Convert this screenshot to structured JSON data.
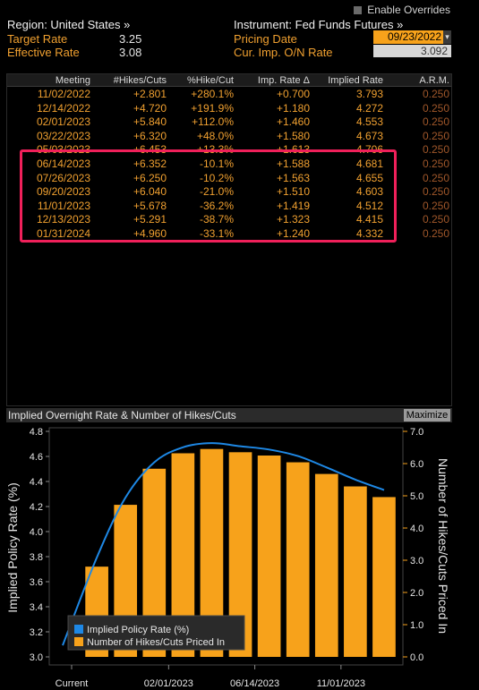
{
  "top_bar": {
    "enable_overrides": "Enable Overrides"
  },
  "header": {
    "region": "Region: United States »",
    "instrument": "Instrument: Fed Funds Futures »",
    "target_rate_label": "Target Rate",
    "target_rate_value": "3.25",
    "effective_rate_label": "Effective Rate",
    "effective_rate_value": "3.08",
    "pricing_date_label": "Pricing Date",
    "pricing_date_value": "09/23/2022",
    "cur_imp_label": "Cur. Imp. O/N Rate",
    "cur_imp_value": "3.092"
  },
  "table": {
    "columns": [
      "Meeting",
      "#Hikes/Cuts",
      "%Hike/Cut",
      "Imp. Rate Δ",
      "Implied Rate",
      "A.R.M."
    ],
    "rows": [
      [
        "11/02/2022",
        "+2.801",
        "+280.1%",
        "+0.700",
        "3.793",
        "0.250"
      ],
      [
        "12/14/2022",
        "+4.720",
        "+191.9%",
        "+1.180",
        "4.272",
        "0.250"
      ],
      [
        "02/01/2023",
        "+5.840",
        "+112.0%",
        "+1.460",
        "4.553",
        "0.250"
      ],
      [
        "03/22/2023",
        "+6.320",
        "+48.0%",
        "+1.580",
        "4.673",
        "0.250"
      ],
      [
        "05/03/2023",
        "+6.453",
        "+13.3%",
        "+1.613",
        "4.706",
        "0.250"
      ],
      [
        "06/14/2023",
        "+6.352",
        "-10.1%",
        "+1.588",
        "4.681",
        "0.250"
      ],
      [
        "07/26/2023",
        "+6.250",
        "-10.2%",
        "+1.563",
        "4.655",
        "0.250"
      ],
      [
        "09/20/2023",
        "+6.040",
        "-21.0%",
        "+1.510",
        "4.603",
        "0.250"
      ],
      [
        "11/01/2023",
        "+5.678",
        "-36.2%",
        "+1.419",
        "4.512",
        "0.250"
      ],
      [
        "12/13/2023",
        "+5.291",
        "-38.7%",
        "+1.323",
        "4.415",
        "0.250"
      ],
      [
        "01/31/2024",
        "+4.960",
        "-33.1%",
        "+1.240",
        "4.332",
        "0.250"
      ]
    ]
  },
  "chart_panel": {
    "title": "Implied Overnight Rate & Number of Hikes/Cuts",
    "maximize": "Maximize"
  },
  "colors": {
    "accent": "#f0a030",
    "line": "#1e88e5",
    "bar": "#f7a21b",
    "highlight": "#f0205a"
  },
  "chart_data": {
    "type": "bar",
    "x_tick_labels": [
      "Current",
      "02/01/2023",
      "06/14/2023",
      "11/01/2023"
    ],
    "categories": [
      "Current",
      "11/02/2022",
      "12/14/2022",
      "02/01/2023",
      "03/22/2023",
      "05/03/2023",
      "06/14/2023",
      "07/26/2023",
      "09/20/2023",
      "11/01/2023",
      "12/13/2023",
      "01/31/2024"
    ],
    "series": [
      {
        "name": "Implied Policy Rate (%)",
        "kind": "line",
        "axis": "left",
        "values": [
          3.092,
          3.793,
          4.272,
          4.553,
          4.673,
          4.706,
          4.681,
          4.655,
          4.603,
          4.512,
          4.415,
          4.332
        ]
      },
      {
        "name": "Number of Hikes/Cuts Priced In",
        "kind": "bar",
        "axis": "right",
        "values": [
          0,
          2.801,
          4.72,
          5.84,
          6.32,
          6.453,
          6.352,
          6.25,
          6.04,
          5.678,
          5.291,
          4.96
        ]
      }
    ],
    "ylabel_left": "Implied Policy Rate (%)",
    "ylabel_right": "Number of Hikes/Cuts Priced In",
    "ylim_left": [
      3.0,
      4.8
    ],
    "ylim_right": [
      0.0,
      7.0
    ],
    "yticks_left": [
      "3.0",
      "3.2",
      "3.4",
      "3.6",
      "3.8",
      "4.0",
      "4.2",
      "4.4",
      "4.6",
      "4.8"
    ],
    "yticks_right": [
      "0.0",
      "1.0",
      "2.0",
      "3.0",
      "4.0",
      "5.0",
      "6.0",
      "7.0"
    ],
    "legend": {
      "placement": "bottom-left"
    }
  }
}
